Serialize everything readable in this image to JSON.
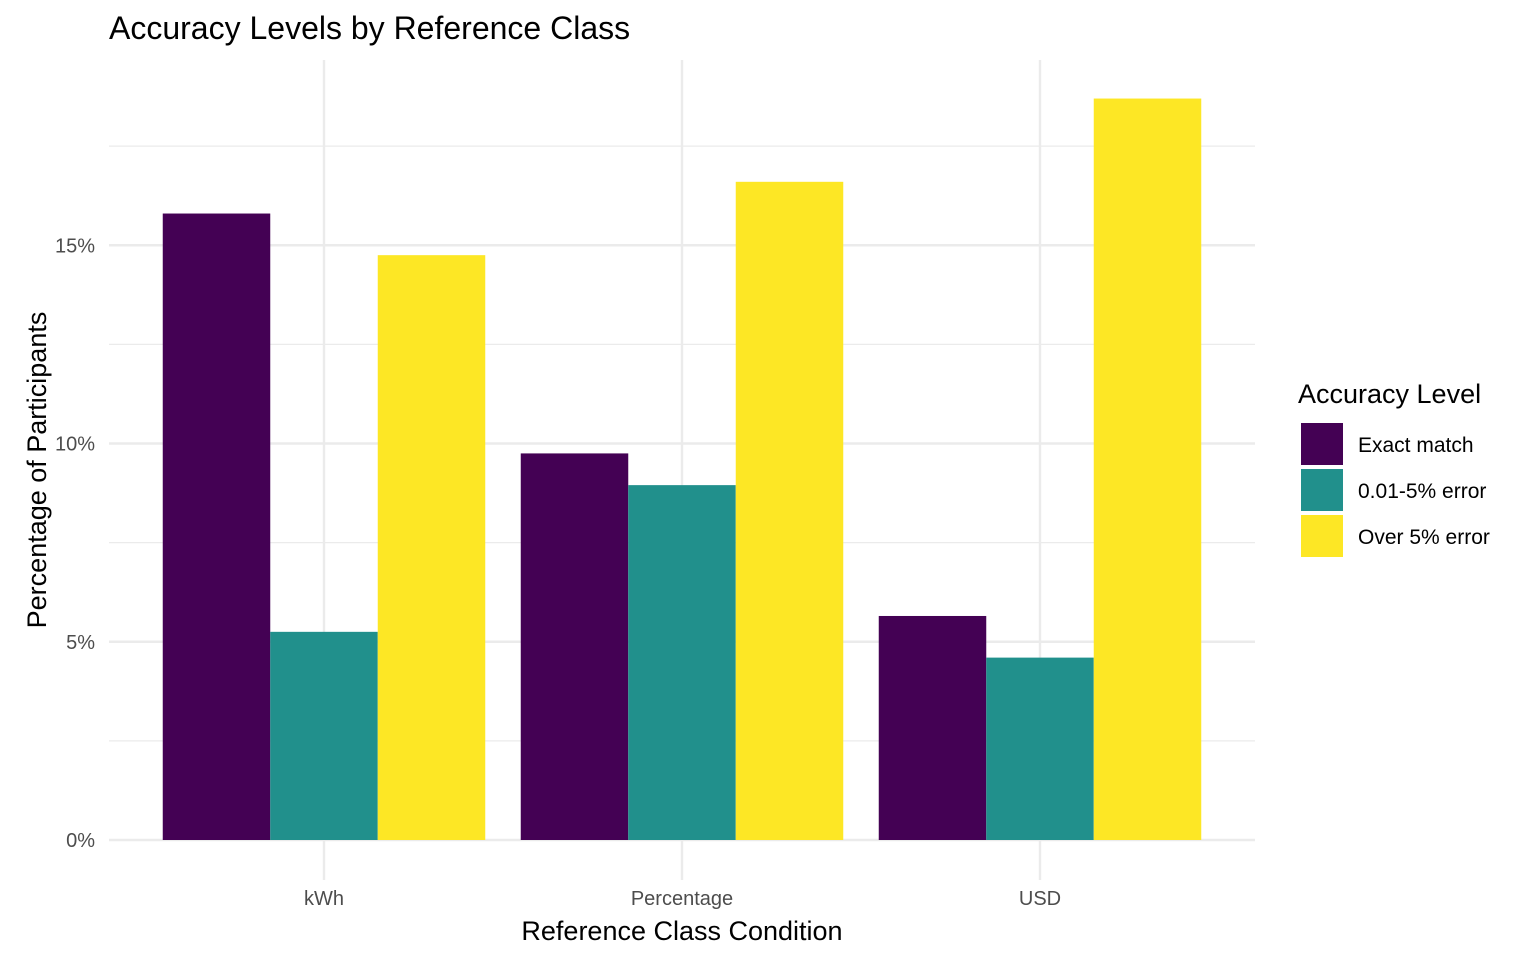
{
  "chart_data": {
    "type": "bar",
    "title": "Accuracy Levels by Reference Class",
    "xlabel": "Reference Class Condition",
    "ylabel": "Percentage of Participants",
    "categories": [
      "kWh",
      "Percentage",
      "USD"
    ],
    "series": [
      {
        "name": "Exact match",
        "color": "#440154",
        "values": [
          15.8,
          9.75,
          5.65
        ]
      },
      {
        "name": "0.01-5% error",
        "color": "#21908C",
        "values": [
          5.25,
          8.95,
          4.6
        ]
      },
      {
        "name": "Over 5% error",
        "color": "#FDE725",
        "values": [
          14.75,
          16.6,
          18.7
        ]
      }
    ],
    "ylim": [
      0,
      19.6
    ],
    "yticks": [
      0,
      5,
      10,
      15
    ],
    "ytick_labels": [
      "0%",
      "5%",
      "10%",
      "15%"
    ],
    "grid": true,
    "legend": {
      "title": "Accuracy Level",
      "position": "right"
    }
  }
}
